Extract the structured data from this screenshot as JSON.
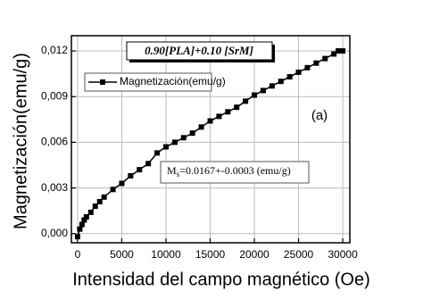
{
  "chart_data": {
    "type": "line",
    "annotations": {
      "sample": "0.90[PLA]+0.10 [SrM]",
      "panel": "(a)",
      "ms_symbol": "M",
      "ms_subscript": "s",
      "ms_value": "=0.0167+-0.0003 (emu/g)"
    },
    "x_label": "Intensidad del campo magnético (Oe)",
    "y_label": "Magnetización(emu/g)",
    "x": [
      0,
      250,
      500,
      750,
      1000,
      1500,
      2000,
      2500,
      3000,
      4000,
      5000,
      6000,
      7000,
      8000,
      9000,
      10000,
      11000,
      12000,
      13000,
      14000,
      15000,
      16000,
      17000,
      18000,
      19000,
      20000,
      21000,
      22000,
      23000,
      24000,
      25000,
      26000,
      27000,
      28000,
      29000,
      29500,
      30000
    ],
    "series": [
      {
        "name": "Magnetización(emu/g)",
        "color": "#000000",
        "values": [
          -0.0002,
          0.0003,
          0.0006,
          0.0009,
          0.0011,
          0.0014,
          0.0018,
          0.0021,
          0.0024,
          0.0029,
          0.0033,
          0.0038,
          0.0042,
          0.0046,
          0.0053,
          0.0057,
          0.006,
          0.0063,
          0.0066,
          0.007,
          0.0074,
          0.0077,
          0.008,
          0.0083,
          0.0087,
          0.0091,
          0.0094,
          0.0097,
          0.01,
          0.0103,
          0.0106,
          0.0109,
          0.0112,
          0.0115,
          0.0118,
          0.012,
          0.012
        ]
      }
    ],
    "xlim": [
      -700,
      30800
    ],
    "ylim": [
      -0.0006,
      0.013
    ],
    "xticks": [
      0,
      5000,
      10000,
      15000,
      20000,
      25000,
      30000
    ],
    "yticks": [
      {
        "value": 0,
        "label": "0,000"
      },
      {
        "value": 0.003,
        "label": "0,003"
      },
      {
        "value": 0.006,
        "label": "0,006"
      },
      {
        "value": 0.009,
        "label": "0,009"
      },
      {
        "value": 0.012,
        "label": "0,012"
      }
    ],
    "grid": true
  }
}
